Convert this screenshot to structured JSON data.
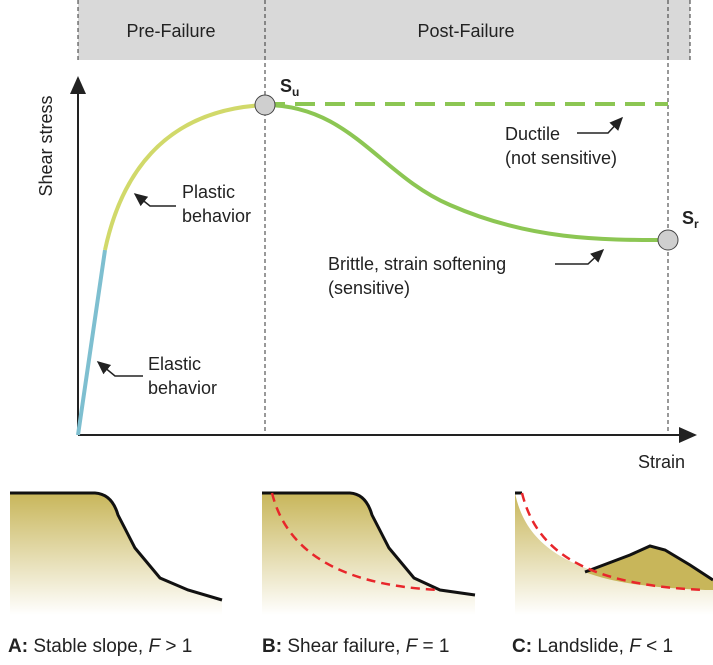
{
  "header": {
    "pre_failure": "Pre-Failure",
    "post_failure": "Post-Failure"
  },
  "axes": {
    "y_label": "Shear stress",
    "x_label": "Strain"
  },
  "points": {
    "su": {
      "symbol": "S",
      "subscript": "u"
    },
    "sr": {
      "symbol": "S",
      "subscript": "r"
    }
  },
  "annotations": {
    "ductile": [
      "Ductile",
      "(not sensitive)"
    ],
    "plastic": [
      "Plastic",
      "behavior"
    ],
    "brittle": [
      "Brittle, strain softening",
      "(sensitive)"
    ],
    "elastic": [
      "Elastic",
      "behavior"
    ]
  },
  "captions": [
    {
      "letter": "A:",
      "text": " Stable slope, ",
      "variable": "F",
      "relation": " > 1"
    },
    {
      "letter": "B:",
      "text": " Shear failure, ",
      "variable": "F",
      "relation": " = 1"
    },
    {
      "letter": "C:",
      "text": " Landslide, ",
      "variable": "F",
      "relation": " < 1"
    }
  ]
}
